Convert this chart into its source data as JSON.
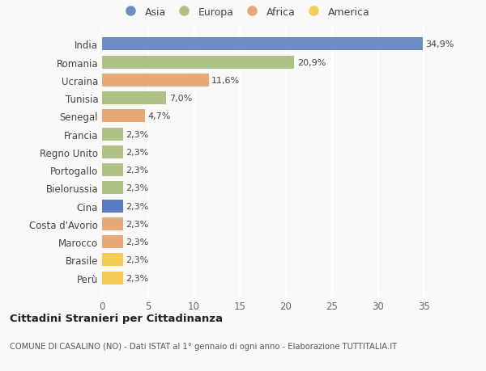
{
  "categories": [
    "India",
    "Romania",
    "Ucraina",
    "Tunisia",
    "Senegal",
    "Francia",
    "Regno Unito",
    "Portogallo",
    "Bielorussia",
    "Cina",
    "Costa d'Avorio",
    "Marocco",
    "Brasile",
    "Perù"
  ],
  "values": [
    34.9,
    20.9,
    11.6,
    7.0,
    4.7,
    2.3,
    2.3,
    2.3,
    2.3,
    2.3,
    2.3,
    2.3,
    2.3,
    2.3
  ],
  "labels": [
    "34,9%",
    "20,9%",
    "11,6%",
    "7,0%",
    "4,7%",
    "2,3%",
    "2,3%",
    "2,3%",
    "2,3%",
    "2,3%",
    "2,3%",
    "2,3%",
    "2,3%",
    "2,3%"
  ],
  "colors": [
    "#6b8dc4",
    "#aec285",
    "#e8a878",
    "#aec285",
    "#e8a878",
    "#aec285",
    "#aec285",
    "#aec285",
    "#aec285",
    "#5a7bbf",
    "#e8a878",
    "#e8a878",
    "#f5cc55",
    "#f5cc55"
  ],
  "legend_labels": [
    "Asia",
    "Europa",
    "Africa",
    "America"
  ],
  "legend_colors": [
    "#6b8dc4",
    "#aec285",
    "#e8a878",
    "#f5cc55"
  ],
  "title": "Cittadini Stranieri per Cittadinanza",
  "subtitle": "COMUNE DI CASALINO (NO) - Dati ISTAT al 1° gennaio di ogni anno - Elaborazione TUTTITALIA.IT",
  "xlim": [
    0,
    37
  ],
  "xticks": [
    0,
    5,
    10,
    15,
    20,
    25,
    30,
    35
  ],
  "background_color": "#f9f9f9",
  "grid_color": "#ffffff"
}
